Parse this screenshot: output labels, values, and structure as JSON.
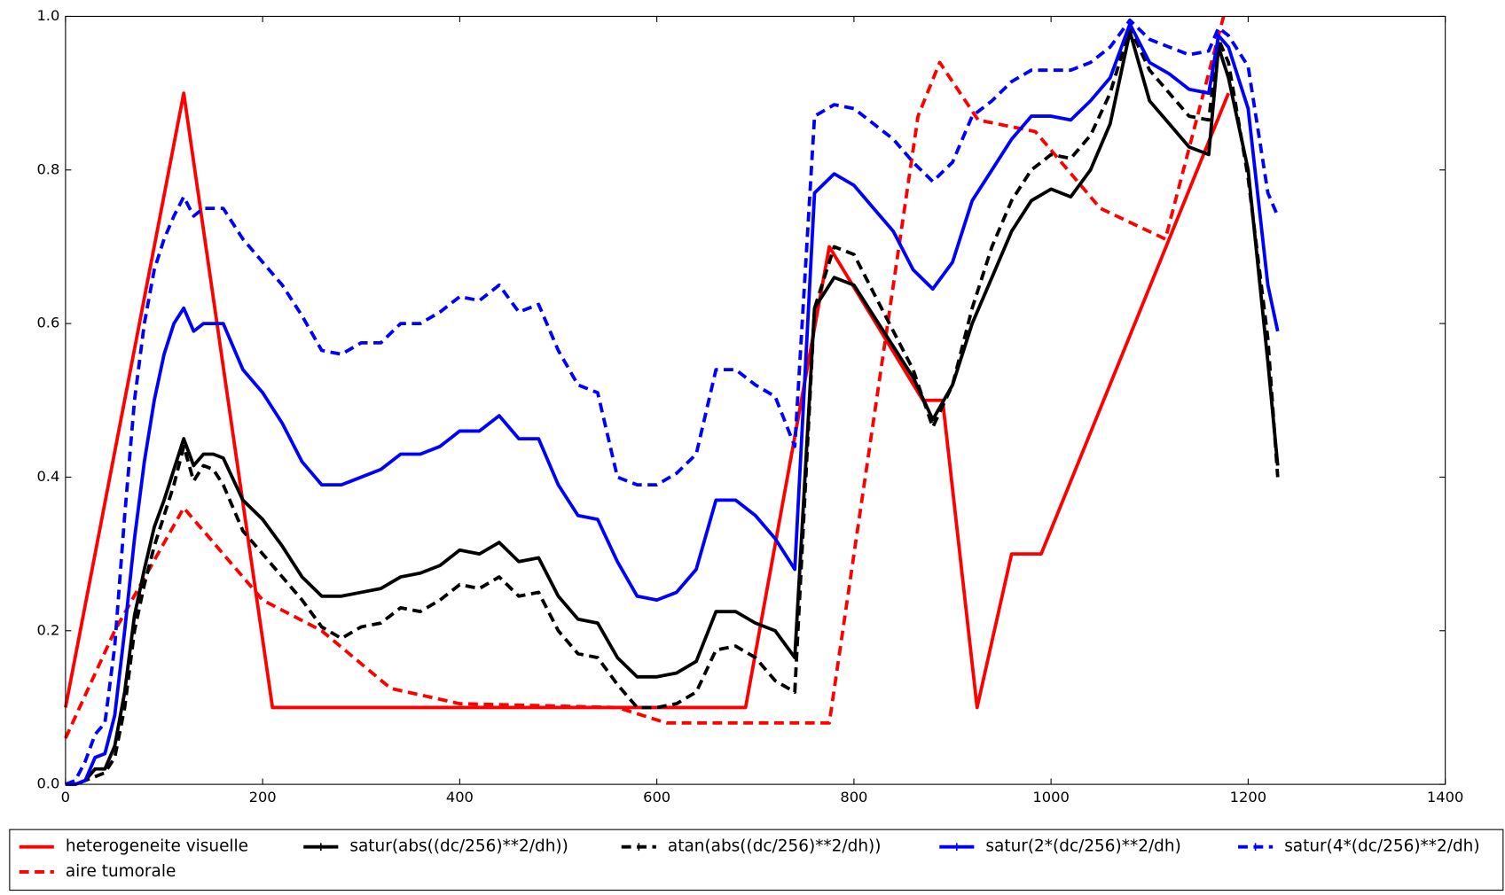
{
  "chart_data": {
    "type": "line",
    "xlim": [
      0,
      1400
    ],
    "xticks": [
      0,
      200,
      400,
      600,
      800,
      1000,
      1200,
      1400
    ],
    "ylim": [
      0,
      1
    ],
    "yticks": [
      {
        "value": 0,
        "label": "0.0"
      },
      0.2,
      0.4,
      0.6,
      0.8,
      {
        "value": 1,
        "label": "1.0"
      }
    ],
    "legend": "bottom",
    "series": [
      {
        "name": "heterogeneite visuelle",
        "color": "#ff0000",
        "dash": false,
        "marker": false,
        "x": [
          0,
          120,
          210,
          690,
          775,
          870,
          890,
          925,
          960,
          990,
          1180
        ],
        "values": [
          0.1,
          0.9,
          0.1,
          0.1,
          0.7,
          0.5,
          0.5,
          0.1,
          0.3,
          0.3,
          0.9
        ]
      },
      {
        "name": "aire tumorale",
        "color": "#ff0000",
        "dash": true,
        "marker": false,
        "x": [
          0,
          50,
          120,
          200,
          260,
          330,
          400,
          560,
          610,
          775,
          865,
          887,
          926,
          984,
          1050,
          1116,
          1175
        ],
        "values": [
          0.06,
          0.2,
          0.36,
          0.24,
          0.2,
          0.125,
          0.105,
          0.1,
          0.08,
          0.08,
          0.87,
          0.94,
          0.865,
          0.85,
          0.75,
          0.71,
          1.0
        ]
      },
      {
        "name": "satur(abs((dc/256)**2/dh))",
        "color": "#000000",
        "dash": false,
        "marker": true,
        "x": [
          0,
          10,
          20,
          30,
          40,
          50,
          60,
          70,
          80,
          90,
          100,
          110,
          120,
          130,
          140,
          150,
          160,
          180,
          200,
          220,
          240,
          260,
          280,
          300,
          320,
          340,
          360,
          380,
          400,
          420,
          440,
          460,
          480,
          500,
          520,
          540,
          560,
          580,
          600,
          620,
          640,
          660,
          680,
          700,
          720,
          740,
          760,
          780,
          800,
          820,
          840,
          860,
          880,
          900,
          920,
          940,
          960,
          980,
          1000,
          1020,
          1040,
          1060,
          1080,
          1100,
          1120,
          1140,
          1160,
          1170,
          1180,
          1200,
          1220,
          1230
        ],
        "values": [
          0,
          0,
          0.005,
          0.02,
          0.02,
          0.05,
          0.12,
          0.22,
          0.28,
          0.335,
          0.37,
          0.41,
          0.45,
          0.415,
          0.43,
          0.43,
          0.425,
          0.37,
          0.345,
          0.31,
          0.27,
          0.245,
          0.245,
          0.25,
          0.255,
          0.27,
          0.275,
          0.285,
          0.305,
          0.3,
          0.315,
          0.29,
          0.295,
          0.245,
          0.215,
          0.21,
          0.165,
          0.14,
          0.14,
          0.145,
          0.16,
          0.225,
          0.225,
          0.21,
          0.2,
          0.165,
          0.62,
          0.66,
          0.65,
          0.61,
          0.57,
          0.53,
          0.475,
          0.52,
          0.6,
          0.66,
          0.72,
          0.76,
          0.775,
          0.765,
          0.8,
          0.86,
          0.98,
          0.89,
          0.86,
          0.83,
          0.82,
          0.96,
          0.92,
          0.8,
          0.55,
          0.415
        ]
      },
      {
        "name": "atan(abs((dc/256)**2/dh))",
        "color": "#000000",
        "dash": true,
        "marker": true,
        "x": [
          0,
          10,
          20,
          30,
          40,
          50,
          60,
          70,
          80,
          90,
          100,
          110,
          120,
          130,
          140,
          150,
          160,
          180,
          200,
          220,
          240,
          260,
          280,
          300,
          320,
          340,
          360,
          380,
          400,
          420,
          440,
          460,
          480,
          500,
          520,
          540,
          560,
          580,
          600,
          620,
          640,
          660,
          680,
          700,
          720,
          740,
          760,
          780,
          800,
          820,
          840,
          860,
          880,
          900,
          920,
          940,
          960,
          980,
          1000,
          1020,
          1040,
          1060,
          1080,
          1100,
          1120,
          1140,
          1160,
          1170,
          1180,
          1200,
          1220,
          1230
        ],
        "values": [
          0,
          0,
          0.005,
          0.01,
          0.015,
          0.035,
          0.1,
          0.2,
          0.26,
          0.31,
          0.35,
          0.39,
          0.44,
          0.395,
          0.415,
          0.41,
          0.39,
          0.33,
          0.3,
          0.27,
          0.24,
          0.205,
          0.19,
          0.205,
          0.21,
          0.23,
          0.225,
          0.24,
          0.26,
          0.255,
          0.27,
          0.245,
          0.25,
          0.2,
          0.17,
          0.165,
          0.13,
          0.1,
          0.1,
          0.105,
          0.12,
          0.175,
          0.18,
          0.165,
          0.135,
          0.12,
          0.62,
          0.7,
          0.69,
          0.64,
          0.59,
          0.54,
          0.465,
          0.52,
          0.62,
          0.7,
          0.76,
          0.8,
          0.82,
          0.815,
          0.845,
          0.9,
          0.985,
          0.93,
          0.9,
          0.87,
          0.865,
          0.97,
          0.94,
          0.79,
          0.58,
          0.4
        ]
      },
      {
        "name": "satur(2*(dc/256)**2/dh)",
        "color": "#0000ff",
        "dash": false,
        "marker": true,
        "x": [
          0,
          10,
          20,
          30,
          40,
          50,
          60,
          70,
          80,
          90,
          100,
          110,
          120,
          130,
          140,
          150,
          160,
          180,
          200,
          220,
          240,
          260,
          280,
          300,
          320,
          340,
          360,
          380,
          400,
          420,
          440,
          460,
          480,
          500,
          520,
          540,
          560,
          580,
          600,
          620,
          640,
          660,
          680,
          700,
          720,
          740,
          760,
          780,
          800,
          820,
          840,
          860,
          880,
          900,
          920,
          940,
          960,
          980,
          1000,
          1020,
          1040,
          1060,
          1080,
          1100,
          1120,
          1140,
          1160,
          1170,
          1180,
          1200,
          1220,
          1230
        ],
        "values": [
          0,
          0,
          0.005,
          0.035,
          0.04,
          0.09,
          0.2,
          0.32,
          0.42,
          0.5,
          0.56,
          0.6,
          0.62,
          0.59,
          0.6,
          0.6,
          0.6,
          0.54,
          0.51,
          0.47,
          0.42,
          0.39,
          0.39,
          0.4,
          0.41,
          0.43,
          0.43,
          0.44,
          0.46,
          0.46,
          0.48,
          0.45,
          0.45,
          0.39,
          0.35,
          0.345,
          0.29,
          0.245,
          0.24,
          0.25,
          0.28,
          0.37,
          0.37,
          0.35,
          0.32,
          0.28,
          0.77,
          0.795,
          0.78,
          0.75,
          0.72,
          0.67,
          0.645,
          0.68,
          0.76,
          0.8,
          0.84,
          0.87,
          0.87,
          0.865,
          0.89,
          0.92,
          0.99,
          0.94,
          0.925,
          0.905,
          0.9,
          0.975,
          0.96,
          0.88,
          0.65,
          0.59
        ]
      },
      {
        "name": "satur(4*(dc/256)**2/dh)",
        "color": "#0000ff",
        "dash": true,
        "marker": true,
        "x": [
          0,
          10,
          20,
          30,
          40,
          50,
          60,
          70,
          80,
          90,
          100,
          110,
          120,
          130,
          140,
          150,
          160,
          180,
          200,
          220,
          240,
          260,
          280,
          300,
          320,
          340,
          360,
          380,
          400,
          420,
          440,
          460,
          480,
          500,
          520,
          540,
          560,
          580,
          600,
          620,
          640,
          660,
          680,
          700,
          720,
          740,
          760,
          780,
          800,
          820,
          840,
          860,
          880,
          900,
          920,
          940,
          960,
          980,
          1000,
          1020,
          1040,
          1060,
          1080,
          1100,
          1120,
          1140,
          1160,
          1170,
          1180,
          1200,
          1220,
          1230
        ],
        "values": [
          0,
          0.005,
          0.03,
          0.065,
          0.08,
          0.18,
          0.35,
          0.5,
          0.6,
          0.67,
          0.71,
          0.74,
          0.765,
          0.74,
          0.75,
          0.75,
          0.75,
          0.71,
          0.68,
          0.65,
          0.61,
          0.565,
          0.56,
          0.575,
          0.575,
          0.6,
          0.6,
          0.615,
          0.635,
          0.63,
          0.65,
          0.615,
          0.625,
          0.565,
          0.52,
          0.51,
          0.4,
          0.39,
          0.39,
          0.405,
          0.43,
          0.54,
          0.54,
          0.52,
          0.505,
          0.44,
          0.87,
          0.885,
          0.88,
          0.86,
          0.84,
          0.81,
          0.785,
          0.81,
          0.87,
          0.89,
          0.915,
          0.93,
          0.93,
          0.93,
          0.94,
          0.96,
          0.995,
          0.97,
          0.96,
          0.95,
          0.955,
          0.985,
          0.975,
          0.935,
          0.77,
          0.74
        ]
      }
    ]
  }
}
